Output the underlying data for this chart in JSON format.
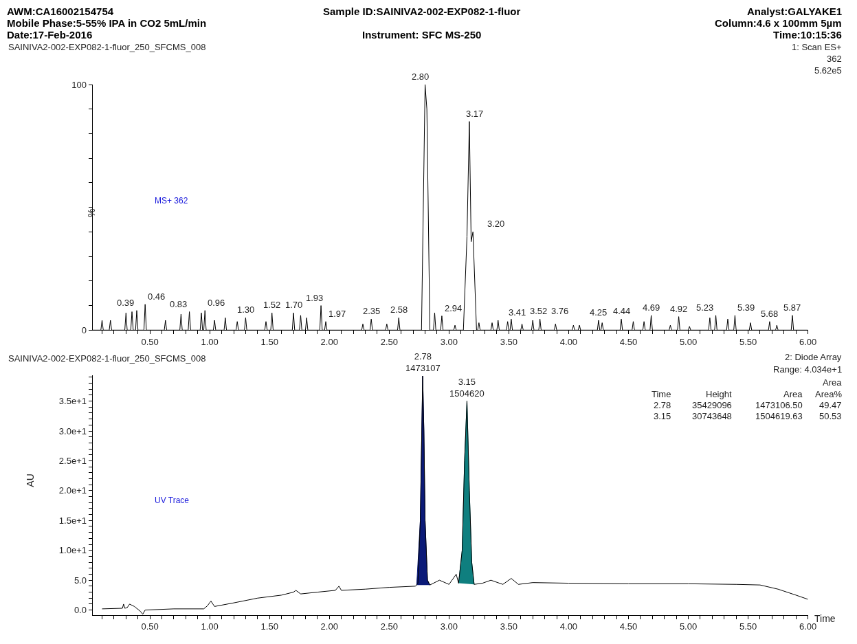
{
  "chart_data": [
    {
      "type": "line",
      "title": "Sample ID:SAINIVA2-002-EXP082-1-fluor",
      "ylabel": "%",
      "annotations": [
        "AWM:CA16002154754",
        "Mobile Phase:5-55% IPA in CO2 5mL/min",
        "Date:17-Feb-2016",
        "Analyst:GALYAKE1",
        "Column:4.6 x 100mm 5µm",
        "Time:10:15:36",
        "Instrument: SFC MS-250",
        "SAINIVA2-002-EXP082-1-fluor_250_SFCMS_008",
        "1: Scan ES+",
        "362",
        "5.62e5",
        "MS+ 362",
        {
          "text": "0.39",
          "x": 0.39,
          "y": 8
        },
        {
          "text": "0.46",
          "x": 0.46,
          "y": 10.5
        },
        {
          "text": "0.83",
          "x": 0.83,
          "y": 7.5
        },
        {
          "text": "0.96",
          "x": 0.96,
          "y": 8
        },
        {
          "text": "1.30",
          "x": 1.3,
          "y": 5
        },
        {
          "text": "1.52",
          "x": 1.52,
          "y": 7
        },
        {
          "text": "1.70",
          "x": 1.7,
          "y": 7
        },
        {
          "text": "1.93",
          "x": 1.93,
          "y": 10
        },
        {
          "text": "1.97",
          "x": 1.97,
          "y": 3.5
        },
        {
          "text": "2.35",
          "x": 2.35,
          "y": 4.5
        },
        {
          "text": "2.58",
          "x": 2.58,
          "y": 5
        },
        {
          "text": "2.80",
          "x": 2.8,
          "y": 100
        },
        {
          "text": "2.94",
          "x": 2.94,
          "y": 5.8
        },
        {
          "text": "3.17",
          "x": 3.17,
          "y": 85
        },
        {
          "text": "3.20",
          "x": 3.2,
          "y": 40
        },
        {
          "text": "3.41",
          "x": 3.41,
          "y": 4
        },
        {
          "text": "3.52",
          "x": 3.52,
          "y": 4.5
        },
        {
          "text": "3.76",
          "x": 3.76,
          "y": 4.5
        },
        {
          "text": "4.25",
          "x": 4.25,
          "y": 4
        },
        {
          "text": "4.44",
          "x": 4.44,
          "y": 4.5
        },
        {
          "text": "4.69",
          "x": 4.69,
          "y": 6
        },
        {
          "text": "4.92",
          "x": 4.92,
          "y": 5.5
        },
        {
          "text": "5.23",
          "x": 5.23,
          "y": 6
        },
        {
          "text": "5.39",
          "x": 5.39,
          "y": 6
        },
        {
          "text": "5.68",
          "x": 5.68,
          "y": 3.5
        },
        {
          "text": "5.87",
          "x": 5.87,
          "y": 6
        }
      ],
      "series": [
        {
          "color": "#000000",
          "x": [
            0.02,
            0.09,
            0.1,
            0.11,
            0.16,
            0.17,
            0.18,
            0.29,
            0.3,
            0.31,
            0.34,
            0.35,
            0.36,
            0.38,
            0.39,
            0.4,
            0.45,
            0.46,
            0.47,
            0.62,
            0.63,
            0.64,
            0.75,
            0.76,
            0.77,
            0.82,
            0.83,
            0.84,
            0.92,
            0.93,
            0.94,
            0.95,
            0.96,
            0.97,
            1.03,
            1.04,
            1.05,
            1.12,
            1.13,
            1.14,
            1.22,
            1.23,
            1.24,
            1.29,
            1.3,
            1.31,
            1.46,
            1.47,
            1.48,
            1.51,
            1.52,
            1.53,
            1.69,
            1.7,
            1.71,
            1.75,
            1.76,
            1.77,
            1.8,
            1.81,
            1.82,
            1.92,
            1.93,
            1.94,
            1.96,
            1.97,
            1.98,
            2.27,
            2.28,
            2.29,
            2.34,
            2.35,
            2.36,
            2.47,
            2.48,
            2.49,
            2.57,
            2.58,
            2.59,
            2.77,
            2.8,
            2.815,
            2.84,
            2.87,
            2.88,
            2.89,
            2.93,
            2.94,
            2.95,
            3.04,
            3.05,
            3.06,
            3.12,
            3.15,
            3.17,
            3.185,
            3.2,
            3.23,
            3.24,
            3.25,
            3.26,
            3.35,
            3.36,
            3.37,
            3.4,
            3.41,
            3.42,
            3.48,
            3.49,
            3.5,
            3.51,
            3.52,
            3.53,
            3.6,
            3.61,
            3.62,
            3.69,
            3.7,
            3.71,
            3.75,
            3.76,
            3.77,
            3.88,
            3.89,
            3.9,
            4.03,
            4.04,
            4.05,
            4.08,
            4.09,
            4.1,
            4.24,
            4.25,
            4.26,
            4.27,
            4.28,
            4.29,
            4.43,
            4.44,
            4.45,
            4.53,
            4.54,
            4.55,
            4.62,
            4.63,
            4.64,
            4.68,
            4.69,
            4.7,
            4.84,
            4.85,
            4.86,
            4.91,
            4.92,
            4.93,
            5.0,
            5.01,
            5.02,
            5.17,
            5.18,
            5.19,
            5.22,
            5.23,
            5.24,
            5.32,
            5.33,
            5.34,
            5.38,
            5.39,
            5.4,
            5.51,
            5.52,
            5.53,
            5.67,
            5.68,
            5.69,
            5.73,
            5.74,
            5.75,
            5.86,
            5.87,
            5.88,
            6.0
          ],
          "values": [
            0,
            0,
            4,
            0,
            0,
            4,
            0,
            0,
            7,
            0,
            0,
            7.5,
            0,
            0,
            8,
            0,
            0,
            10.5,
            0,
            0,
            4,
            0,
            0,
            6.5,
            0,
            0,
            7.5,
            0,
            0,
            7,
            0,
            0,
            8,
            0,
            0,
            4,
            0,
            0,
            5,
            0,
            0,
            3.5,
            0,
            0,
            5,
            0,
            0,
            3.5,
            0,
            0,
            7,
            0,
            0,
            7,
            0,
            0,
            6,
            0,
            0,
            5,
            0,
            0,
            10,
            0,
            0,
            3.5,
            0,
            0,
            2.5,
            0,
            0,
            4.5,
            0,
            0,
            2.5,
            0,
            0,
            5,
            0,
            0,
            100,
            90,
            0,
            0,
            7,
            0,
            0,
            5.8,
            0,
            0,
            2,
            0,
            0,
            38,
            85,
            36,
            40,
            0,
            0,
            3,
            0,
            0,
            3,
            0,
            0,
            4,
            0,
            0,
            3.5,
            0,
            0,
            4.5,
            0,
            0,
            2.5,
            0,
            0,
            4,
            0,
            0,
            4.5,
            0,
            0,
            2.5,
            0,
            0,
            2,
            0,
            0,
            2,
            0,
            0,
            4,
            0,
            0,
            3,
            0,
            0,
            4.5,
            0,
            0,
            3.5,
            0,
            0,
            3.5,
            0,
            0,
            6,
            0,
            0,
            2,
            0,
            0,
            5.5,
            0,
            0,
            1.5,
            0,
            0,
            5,
            0,
            0,
            6,
            0,
            0,
            4.5,
            0,
            0,
            6,
            0,
            0,
            3,
            0,
            0,
            3.5,
            0,
            0,
            2,
            0,
            0,
            6,
            0,
            0
          ]
        }
      ],
      "xlim": [
        0.02,
        6.0
      ],
      "xticks": [
        {
          "value": 0.1,
          "label": null
        },
        {
          "value": 0.2,
          "label": null
        },
        {
          "value": 0.3,
          "label": null
        },
        {
          "value": 0.4,
          "label": null
        },
        {
          "value": 0.5,
          "label": "0.50"
        },
        {
          "value": 0.6,
          "label": null
        },
        {
          "value": 0.7,
          "label": null
        },
        {
          "value": 0.8,
          "label": null
        },
        {
          "value": 0.9,
          "label": null
        },
        {
          "value": 1.0,
          "label": "1.00"
        },
        {
          "value": 1.1,
          "label": null
        },
        {
          "value": 1.2,
          "label": null
        },
        {
          "value": 1.3,
          "label": null
        },
        {
          "value": 1.4,
          "label": null
        },
        {
          "value": 1.5,
          "label": "1.50"
        },
        {
          "value": 1.6,
          "label": null
        },
        {
          "value": 1.7,
          "label": null
        },
        {
          "value": 1.8,
          "label": null
        },
        {
          "value": 1.9,
          "label": null
        },
        {
          "value": 2.0,
          "label": "2.00"
        },
        {
          "value": 2.1,
          "label": null
        },
        {
          "value": 2.2,
          "label": null
        },
        {
          "value": 2.3,
          "label": null
        },
        {
          "value": 2.4,
          "label": null
        },
        {
          "value": 2.5,
          "label": "2.50"
        },
        {
          "value": 2.6,
          "label": null
        },
        {
          "value": 2.7,
          "label": null
        },
        {
          "value": 2.8,
          "label": null
        },
        {
          "value": 2.9,
          "label": null
        },
        {
          "value": 3.0,
          "label": "3.00"
        },
        {
          "value": 3.1,
          "label": null
        },
        {
          "value": 3.2,
          "label": null
        },
        {
          "value": 3.3,
          "label": null
        },
        {
          "value": 3.4,
          "label": null
        },
        {
          "value": 3.5,
          "label": "3.50"
        },
        {
          "value": 3.6,
          "label": null
        },
        {
          "value": 3.7,
          "label": null
        },
        {
          "value": 3.8,
          "label": null
        },
        {
          "value": 3.9,
          "label": null
        },
        {
          "value": 4.0,
          "label": "4.00"
        },
        {
          "value": 4.1,
          "label": null
        },
        {
          "value": 4.2,
          "label": null
        },
        {
          "value": 4.3,
          "label": null
        },
        {
          "value": 4.4,
          "label": null
        },
        {
          "value": 4.5,
          "label": "4.50"
        },
        {
          "value": 4.6,
          "label": null
        },
        {
          "value": 4.7,
          "label": null
        },
        {
          "value": 4.8,
          "label": null
        },
        {
          "value": 4.9,
          "label": null
        },
        {
          "value": 5.0,
          "label": "5.00"
        },
        {
          "value": 5.1,
          "label": null
        },
        {
          "value": 5.2,
          "label": null
        },
        {
          "value": 5.3,
          "label": null
        },
        {
          "value": 5.4,
          "label": null
        },
        {
          "value": 5.5,
          "label": "5.50"
        },
        {
          "value": 5.6,
          "label": null
        },
        {
          "value": 5.7,
          "label": null
        },
        {
          "value": 5.8,
          "label": null
        },
        {
          "value": 5.9,
          "label": null
        },
        {
          "value": 6.0,
          "label": "6.00"
        }
      ],
      "ylim": [
        0,
        100
      ],
      "yticks": [
        0,
        {
          "value": 10,
          "label": null
        },
        {
          "value": 20,
          "label": null
        },
        {
          "value": 30,
          "label": null
        },
        {
          "value": 40,
          "label": null
        },
        {
          "value": 50,
          "label": null
        },
        {
          "value": 60,
          "label": null
        },
        {
          "value": 70,
          "label": null
        },
        {
          "value": 80,
          "label": null
        },
        {
          "value": 90,
          "label": null
        },
        100
      ],
      "marker": "none",
      "line_style": "solid"
    },
    {
      "type": "line",
      "ylabel": "AU",
      "xlabel": "Time",
      "annotations": [
        "SAINIVA2-002-EXP082-1-fluor_250_SFCMS_008",
        "2: Diode Array",
        "Range: 4.034e+1",
        "Area",
        "Time",
        "Height",
        "Area",
        "Area%",
        "2.78",
        "35429096",
        "1473106.50",
        "49.47",
        "3.15",
        "30743648",
        "1504619.63",
        "50.53",
        "UV Trace",
        {
          "text": "2.78\n1473107",
          "x": 2.78,
          "y": 39.2
        },
        {
          "text": "3.15\n1504620",
          "x": 3.15,
          "y": 35.0
        }
      ],
      "series": [
        {
          "color": "#000000",
          "x": [
            0.1,
            0.27,
            0.28,
            0.29,
            0.31,
            0.33,
            0.37,
            0.42,
            0.44,
            0.46,
            0.7,
            0.95,
            0.98,
            1.01,
            1.04,
            1.2,
            1.4,
            1.6,
            1.7,
            1.72,
            1.76,
            1.9,
            2.05,
            2.08,
            2.1,
            2.3,
            2.5,
            2.72,
            2.74,
            2.76,
            2.78,
            2.79,
            2.8,
            2.82,
            2.84,
            2.92,
            3.0,
            3.06,
            3.08,
            3.11,
            3.13,
            3.15,
            3.17,
            3.19,
            3.21,
            3.28,
            3.35,
            3.45,
            3.52,
            3.58,
            3.7,
            4.0,
            4.5,
            5.0,
            5.4,
            5.6,
            5.75,
            5.9,
            6.0
          ],
          "values": [
            0.2,
            0.3,
            1.0,
            0.3,
            0.4,
            1.0,
            0.6,
            -0.2,
            -0.7,
            0.0,
            0.2,
            0.2,
            0.7,
            1.5,
            0.6,
            1.2,
            2.0,
            2.5,
            3.0,
            3.3,
            2.7,
            3.0,
            3.3,
            4.0,
            3.3,
            3.5,
            3.8,
            4.0,
            4.5,
            15,
            39.2,
            30,
            15,
            5,
            4.2,
            5.0,
            4.3,
            6.0,
            4.5,
            10,
            25,
            35.0,
            20,
            8,
            4.3,
            4.5,
            5.0,
            4.3,
            5.3,
            4.3,
            4.6,
            4.5,
            4.4,
            4.4,
            4.3,
            4.2,
            3.5,
            2.5,
            1.8
          ]
        },
        {
          "type": "area",
          "color": "#0b1a78",
          "x": [
            2.73,
            2.76,
            2.78,
            2.79,
            2.8,
            2.82,
            2.84
          ],
          "values": [
            4.2,
            15,
            39.2,
            30,
            15,
            5,
            4.2
          ]
        },
        {
          "type": "area",
          "color": "#0f7f7f",
          "x": [
            3.08,
            3.11,
            3.13,
            3.15,
            3.17,
            3.19,
            3.21
          ],
          "values": [
            4.5,
            10,
            25,
            35.0,
            20,
            8,
            4.3
          ]
        }
      ],
      "xlim": [
        0.02,
        6.0
      ],
      "xticks": [
        {
          "value": 0.1,
          "label": null
        },
        {
          "value": 0.2,
          "label": null
        },
        {
          "value": 0.3,
          "label": null
        },
        {
          "value": 0.4,
          "label": null
        },
        {
          "value": 0.5,
          "label": "0.50"
        },
        {
          "value": 0.6,
          "label": null
        },
        {
          "value": 0.7,
          "label": null
        },
        {
          "value": 0.8,
          "label": null
        },
        {
          "value": 0.9,
          "label": null
        },
        {
          "value": 1.0,
          "label": "1.00"
        },
        {
          "value": 1.1,
          "label": null
        },
        {
          "value": 1.2,
          "label": null
        },
        {
          "value": 1.3,
          "label": null
        },
        {
          "value": 1.4,
          "label": null
        },
        {
          "value": 1.5,
          "label": "1.50"
        },
        {
          "value": 1.6,
          "label": null
        },
        {
          "value": 1.7,
          "label": null
        },
        {
          "value": 1.8,
          "label": null
        },
        {
          "value": 1.9,
          "label": null
        },
        {
          "value": 2.0,
          "label": "2.00"
        },
        {
          "value": 2.1,
          "label": null
        },
        {
          "value": 2.2,
          "label": null
        },
        {
          "value": 2.3,
          "label": null
        },
        {
          "value": 2.4,
          "label": null
        },
        {
          "value": 2.5,
          "label": "2.50"
        },
        {
          "value": 2.6,
          "label": null
        },
        {
          "value": 2.7,
          "label": null
        },
        {
          "value": 2.8,
          "label": null
        },
        {
          "value": 2.9,
          "label": null
        },
        {
          "value": 3.0,
          "label": "3.00"
        },
        {
          "value": 3.1,
          "label": null
        },
        {
          "value": 3.2,
          "label": null
        },
        {
          "value": 3.3,
          "label": null
        },
        {
          "value": 3.4,
          "label": null
        },
        {
          "value": 3.5,
          "label": "3.50"
        },
        {
          "value": 3.6,
          "label": null
        },
        {
          "value": 3.7,
          "label": null
        },
        {
          "value": 3.8,
          "label": null
        },
        {
          "value": 3.9,
          "label": null
        },
        {
          "value": 4.0,
          "label": "4.00"
        },
        {
          "value": 4.1,
          "label": null
        },
        {
          "value": 4.2,
          "label": null
        },
        {
          "value": 4.3,
          "label": null
        },
        {
          "value": 4.4,
          "label": null
        },
        {
          "value": 4.5,
          "label": "4.50"
        },
        {
          "value": 4.6,
          "label": null
        },
        {
          "value": 4.7,
          "label": null
        },
        {
          "value": 4.8,
          "label": null
        },
        {
          "value": 4.9,
          "label": null
        },
        {
          "value": 5.0,
          "label": "5.00"
        },
        {
          "value": 5.1,
          "label": null
        },
        {
          "value": 5.2,
          "label": null
        },
        {
          "value": 5.3,
          "label": null
        },
        {
          "value": 5.4,
          "label": null
        },
        {
          "value": 5.5,
          "label": "5.50"
        },
        {
          "value": 5.6,
          "label": null
        },
        {
          "value": 5.7,
          "label": null
        },
        {
          "value": 5.8,
          "label": null
        },
        {
          "value": 5.9,
          "label": null
        },
        {
          "value": 6.0,
          "label": "6.00"
        }
      ],
      "ylim": [
        -0.8,
        39.3
      ],
      "yticks": [
        {
          "value": 0,
          "label": "0.0"
        },
        {
          "value": 1,
          "label": null
        },
        {
          "value": 2,
          "label": null
        },
        {
          "value": 3,
          "label": null
        },
        {
          "value": 4,
          "label": null
        },
        {
          "value": 5,
          "label": "5.0"
        },
        {
          "value": 6,
          "label": null
        },
        {
          "value": 7,
          "label": null
        },
        {
          "value": 8,
          "label": null
        },
        {
          "value": 9,
          "label": null
        },
        {
          "value": 10,
          "label": "1.0e+1"
        },
        {
          "value": 11,
          "label": null
        },
        {
          "value": 12,
          "label": null
        },
        {
          "value": 13,
          "label": null
        },
        {
          "value": 14,
          "label": null
        },
        {
          "value": 15,
          "label": "1.5e+1"
        },
        {
          "value": 16,
          "label": null
        },
        {
          "value": 17,
          "label": null
        },
        {
          "value": 18,
          "label": null
        },
        {
          "value": 19,
          "label": null
        },
        {
          "value": 20,
          "label": "2.0e+1"
        },
        {
          "value": 21,
          "label": null
        },
        {
          "value": 22,
          "label": null
        },
        {
          "value": 23,
          "label": null
        },
        {
          "value": 24,
          "label": null
        },
        {
          "value": 25,
          "label": "2.5e+1"
        },
        {
          "value": 26,
          "label": null
        },
        {
          "value": 27,
          "label": null
        },
        {
          "value": 28,
          "label": null
        },
        {
          "value": 29,
          "label": null
        },
        {
          "value": 30,
          "label": "3.0e+1"
        },
        {
          "value": 31,
          "label": null
        },
        {
          "value": 32,
          "label": null
        },
        {
          "value": 33,
          "label": null
        },
        {
          "value": 34,
          "label": null
        },
        {
          "value": 35,
          "label": "3.5e+1"
        },
        {
          "value": 36,
          "label": null
        },
        {
          "value": 37,
          "label": null
        },
        {
          "value": 38,
          "label": null
        },
        {
          "value": 39,
          "label": null
        }
      ],
      "marker": "none",
      "line_style": "solid"
    }
  ]
}
